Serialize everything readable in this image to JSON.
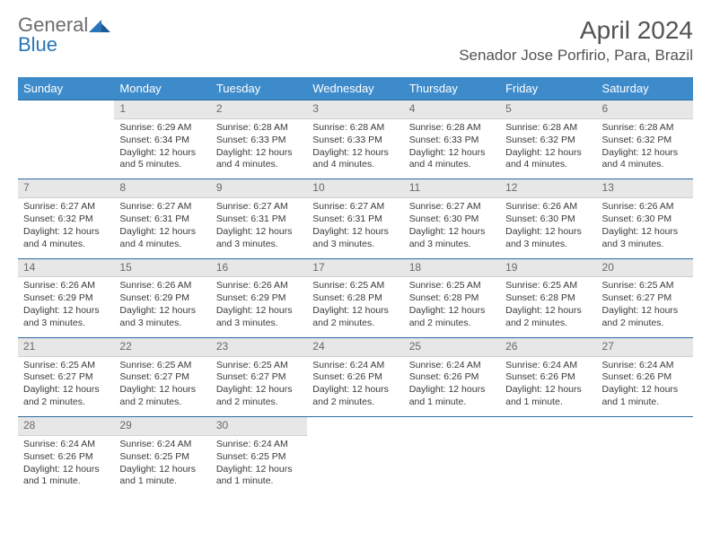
{
  "logo": {
    "line1": "General",
    "line2": "Blue"
  },
  "title": "April 2024",
  "location": "Senador Jose Porfirio, Para, Brazil",
  "colors": {
    "header_bg": "#3d8bca",
    "header_border": "#2c6aa0",
    "daynum_bg": "#e7e7e7",
    "logo_gray": "#6d6d6d",
    "logo_blue": "#2a74b8"
  },
  "weekdays": [
    "Sunday",
    "Monday",
    "Tuesday",
    "Wednesday",
    "Thursday",
    "Friday",
    "Saturday"
  ],
  "weeks": [
    [
      {
        "empty": true
      },
      {
        "num": "1",
        "sunrise": "Sunrise: 6:29 AM",
        "sunset": "Sunset: 6:34 PM",
        "daylight": "Daylight: 12 hours and 5 minutes."
      },
      {
        "num": "2",
        "sunrise": "Sunrise: 6:28 AM",
        "sunset": "Sunset: 6:33 PM",
        "daylight": "Daylight: 12 hours and 4 minutes."
      },
      {
        "num": "3",
        "sunrise": "Sunrise: 6:28 AM",
        "sunset": "Sunset: 6:33 PM",
        "daylight": "Daylight: 12 hours and 4 minutes."
      },
      {
        "num": "4",
        "sunrise": "Sunrise: 6:28 AM",
        "sunset": "Sunset: 6:33 PM",
        "daylight": "Daylight: 12 hours and 4 minutes."
      },
      {
        "num": "5",
        "sunrise": "Sunrise: 6:28 AM",
        "sunset": "Sunset: 6:32 PM",
        "daylight": "Daylight: 12 hours and 4 minutes."
      },
      {
        "num": "6",
        "sunrise": "Sunrise: 6:28 AM",
        "sunset": "Sunset: 6:32 PM",
        "daylight": "Daylight: 12 hours and 4 minutes."
      }
    ],
    [
      {
        "num": "7",
        "sunrise": "Sunrise: 6:27 AM",
        "sunset": "Sunset: 6:32 PM",
        "daylight": "Daylight: 12 hours and 4 minutes."
      },
      {
        "num": "8",
        "sunrise": "Sunrise: 6:27 AM",
        "sunset": "Sunset: 6:31 PM",
        "daylight": "Daylight: 12 hours and 4 minutes."
      },
      {
        "num": "9",
        "sunrise": "Sunrise: 6:27 AM",
        "sunset": "Sunset: 6:31 PM",
        "daylight": "Daylight: 12 hours and 3 minutes."
      },
      {
        "num": "10",
        "sunrise": "Sunrise: 6:27 AM",
        "sunset": "Sunset: 6:31 PM",
        "daylight": "Daylight: 12 hours and 3 minutes."
      },
      {
        "num": "11",
        "sunrise": "Sunrise: 6:27 AM",
        "sunset": "Sunset: 6:30 PM",
        "daylight": "Daylight: 12 hours and 3 minutes."
      },
      {
        "num": "12",
        "sunrise": "Sunrise: 6:26 AM",
        "sunset": "Sunset: 6:30 PM",
        "daylight": "Daylight: 12 hours and 3 minutes."
      },
      {
        "num": "13",
        "sunrise": "Sunrise: 6:26 AM",
        "sunset": "Sunset: 6:30 PM",
        "daylight": "Daylight: 12 hours and 3 minutes."
      }
    ],
    [
      {
        "num": "14",
        "sunrise": "Sunrise: 6:26 AM",
        "sunset": "Sunset: 6:29 PM",
        "daylight": "Daylight: 12 hours and 3 minutes."
      },
      {
        "num": "15",
        "sunrise": "Sunrise: 6:26 AM",
        "sunset": "Sunset: 6:29 PM",
        "daylight": "Daylight: 12 hours and 3 minutes."
      },
      {
        "num": "16",
        "sunrise": "Sunrise: 6:26 AM",
        "sunset": "Sunset: 6:29 PM",
        "daylight": "Daylight: 12 hours and 3 minutes."
      },
      {
        "num": "17",
        "sunrise": "Sunrise: 6:25 AM",
        "sunset": "Sunset: 6:28 PM",
        "daylight": "Daylight: 12 hours and 2 minutes."
      },
      {
        "num": "18",
        "sunrise": "Sunrise: 6:25 AM",
        "sunset": "Sunset: 6:28 PM",
        "daylight": "Daylight: 12 hours and 2 minutes."
      },
      {
        "num": "19",
        "sunrise": "Sunrise: 6:25 AM",
        "sunset": "Sunset: 6:28 PM",
        "daylight": "Daylight: 12 hours and 2 minutes."
      },
      {
        "num": "20",
        "sunrise": "Sunrise: 6:25 AM",
        "sunset": "Sunset: 6:27 PM",
        "daylight": "Daylight: 12 hours and 2 minutes."
      }
    ],
    [
      {
        "num": "21",
        "sunrise": "Sunrise: 6:25 AM",
        "sunset": "Sunset: 6:27 PM",
        "daylight": "Daylight: 12 hours and 2 minutes."
      },
      {
        "num": "22",
        "sunrise": "Sunrise: 6:25 AM",
        "sunset": "Sunset: 6:27 PM",
        "daylight": "Daylight: 12 hours and 2 minutes."
      },
      {
        "num": "23",
        "sunrise": "Sunrise: 6:25 AM",
        "sunset": "Sunset: 6:27 PM",
        "daylight": "Daylight: 12 hours and 2 minutes."
      },
      {
        "num": "24",
        "sunrise": "Sunrise: 6:24 AM",
        "sunset": "Sunset: 6:26 PM",
        "daylight": "Daylight: 12 hours and 2 minutes."
      },
      {
        "num": "25",
        "sunrise": "Sunrise: 6:24 AM",
        "sunset": "Sunset: 6:26 PM",
        "daylight": "Daylight: 12 hours and 1 minute."
      },
      {
        "num": "26",
        "sunrise": "Sunrise: 6:24 AM",
        "sunset": "Sunset: 6:26 PM",
        "daylight": "Daylight: 12 hours and 1 minute."
      },
      {
        "num": "27",
        "sunrise": "Sunrise: 6:24 AM",
        "sunset": "Sunset: 6:26 PM",
        "daylight": "Daylight: 12 hours and 1 minute."
      }
    ],
    [
      {
        "num": "28",
        "sunrise": "Sunrise: 6:24 AM",
        "sunset": "Sunset: 6:26 PM",
        "daylight": "Daylight: 12 hours and 1 minute."
      },
      {
        "num": "29",
        "sunrise": "Sunrise: 6:24 AM",
        "sunset": "Sunset: 6:25 PM",
        "daylight": "Daylight: 12 hours and 1 minute."
      },
      {
        "num": "30",
        "sunrise": "Sunrise: 6:24 AM",
        "sunset": "Sunset: 6:25 PM",
        "daylight": "Daylight: 12 hours and 1 minute."
      },
      {
        "empty": true
      },
      {
        "empty": true
      },
      {
        "empty": true
      },
      {
        "empty": true
      }
    ]
  ]
}
